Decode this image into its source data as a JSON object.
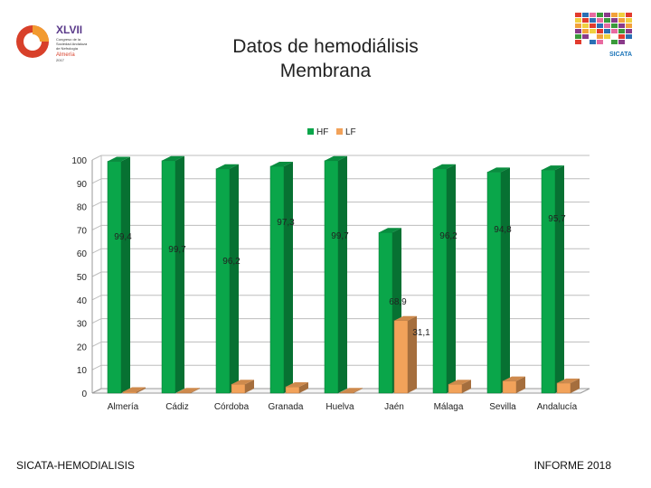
{
  "header": {
    "title_line1": "Datos de hemodiálisis",
    "title_line2": "Membrana",
    "logo_left": {
      "lines": [
        "XLVII",
        "Congreso de la",
        "Sociedad Andaluza",
        "de Nefrología",
        "Almería",
        "2017"
      ]
    },
    "logo_right": {
      "text": "SICATA"
    }
  },
  "footer": {
    "left": "SICATA-HEMODIALISIS",
    "right": "INFORME 2018"
  },
  "colors": {
    "hf": "#0aa64a",
    "lf": "#f2a25a"
  },
  "chart_data": {
    "type": "bar",
    "categories": [
      "Almería",
      "Cádiz",
      "Córdoba",
      "Granada",
      "Huelva",
      "Jaén",
      "Málaga",
      "Sevilla",
      "Andalucía"
    ],
    "series": [
      {
        "name": "HF",
        "values": [
          99.4,
          99.7,
          96.2,
          97.3,
          99.7,
          68.9,
          96.2,
          94.8,
          95.7
        ]
      },
      {
        "name": "LF",
        "values": [
          0.6,
          0.3,
          3.8,
          2.7,
          0.3,
          31.1,
          3.8,
          5.2,
          4.3
        ]
      }
    ],
    "data_labels": [
      {
        "series": 0,
        "index": 0,
        "text": "99,4"
      },
      {
        "series": 0,
        "index": 1,
        "text": "99,7"
      },
      {
        "series": 0,
        "index": 2,
        "text": "96,2"
      },
      {
        "series": 0,
        "index": 3,
        "text": "97,3"
      },
      {
        "series": 0,
        "index": 4,
        "text": "99,7"
      },
      {
        "series": 0,
        "index": 5,
        "text": "68,9"
      },
      {
        "series": 0,
        "index": 6,
        "text": "96,2"
      },
      {
        "series": 0,
        "index": 7,
        "text": "94,8"
      },
      {
        "series": 0,
        "index": 8,
        "text": "95,7"
      },
      {
        "series": 1,
        "index": 5,
        "text": "31,1"
      }
    ],
    "y_ticks": [
      0,
      10,
      20,
      30,
      40,
      50,
      60,
      70,
      80,
      90,
      100
    ],
    "ylim": [
      0,
      100
    ],
    "grid": true,
    "legend_position": "top-center"
  }
}
